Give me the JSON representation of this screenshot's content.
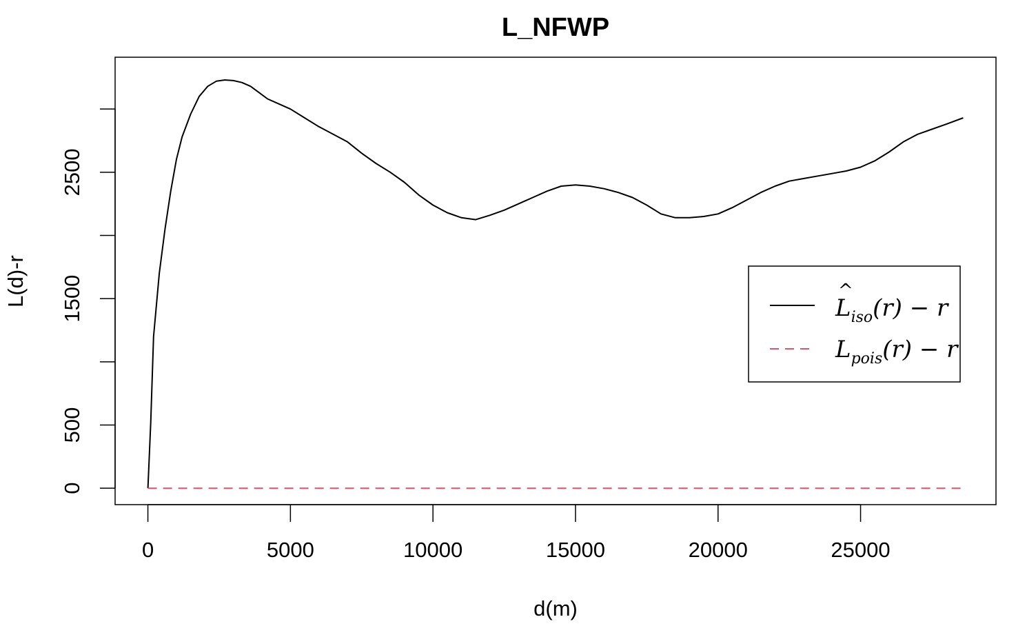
{
  "chart_data": {
    "type": "line",
    "title": "L_NFWP",
    "xlabel": "d(m)",
    "ylabel": "L(d)-r",
    "xlim": [
      -1150,
      29750
    ],
    "ylim": [
      -130,
      3410
    ],
    "x_ticks": [
      0,
      5000,
      10000,
      15000,
      20000,
      25000
    ],
    "x_tick_labels": [
      "0",
      "5000",
      "10000",
      "15000",
      "20000",
      "25000"
    ],
    "y_ticks": [
      0,
      500,
      1000,
      1500,
      2000,
      2500,
      3000
    ],
    "y_tick_labels": [
      "0",
      "500",
      "",
      "1500",
      "",
      "2500",
      ""
    ],
    "grid": false,
    "legend_position": "right",
    "series": [
      {
        "name": "L_iso(r) - r",
        "legend": {
          "base": "L",
          "hat": "^",
          "sub": "iso",
          "rest": "(r) − r"
        },
        "color": "#000000",
        "dash": "solid",
        "x": [
          0,
          100,
          200,
          400,
          600,
          800,
          1000,
          1200,
          1500,
          1800,
          2100,
          2400,
          2700,
          3000,
          3300,
          3600,
          3900,
          4200,
          4600,
          5000,
          5500,
          6000,
          6500,
          7000,
          7500,
          8000,
          8500,
          9000,
          9500,
          10000,
          10500,
          11000,
          11500,
          12000,
          12500,
          13000,
          13500,
          14000,
          14500,
          15000,
          15500,
          16000,
          16500,
          17000,
          17500,
          18000,
          18500,
          19000,
          19500,
          20000,
          20500,
          21000,
          21500,
          22000,
          22500,
          23000,
          23500,
          24000,
          24500,
          25000,
          25500,
          26000,
          26500,
          27000,
          27500,
          28000,
          28600
        ],
        "y": [
          0,
          520,
          1200,
          1700,
          2050,
          2350,
          2600,
          2780,
          2960,
          3100,
          3180,
          3220,
          3230,
          3225,
          3210,
          3180,
          3130,
          3080,
          3040,
          3000,
          2930,
          2860,
          2800,
          2740,
          2650,
          2570,
          2500,
          2420,
          2320,
          2240,
          2180,
          2140,
          2125,
          2160,
          2200,
          2250,
          2300,
          2350,
          2390,
          2400,
          2390,
          2370,
          2340,
          2300,
          2240,
          2170,
          2140,
          2140,
          2150,
          2170,
          2220,
          2280,
          2340,
          2390,
          2430,
          2450,
          2470,
          2490,
          2510,
          2540,
          2590,
          2660,
          2740,
          2800,
          2840,
          2880,
          2930
        ]
      },
      {
        "name": "L_pois(r) - r",
        "legend": {
          "base": "L",
          "sub": "pois",
          "rest": "(r) − r"
        },
        "color": "#df536b",
        "dash": "dashed",
        "x": [
          0,
          28600
        ],
        "y": [
          0,
          0
        ]
      }
    ]
  }
}
